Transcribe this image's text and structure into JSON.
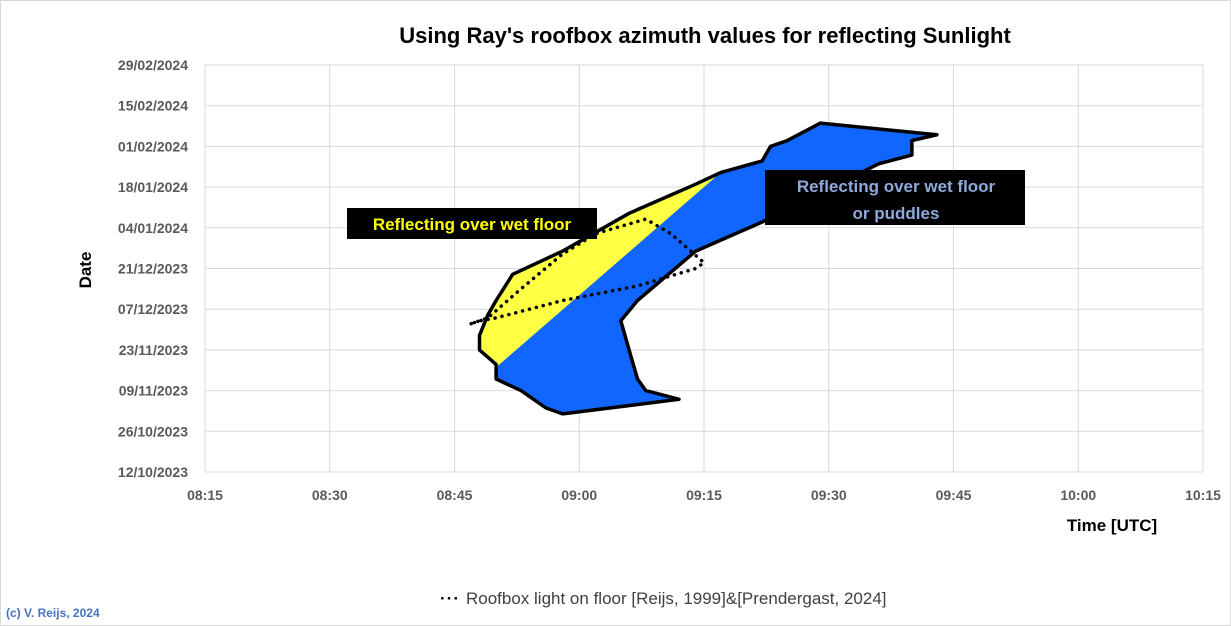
{
  "chart_data": {
    "type": "area",
    "title": "Using Ray's roofbox azimuth values for reflecting Sunlight",
    "xlabel": "Time [UTC]",
    "ylabel": "Date",
    "xlim": [
      "08:15",
      "10:15"
    ],
    "ylim": [
      "2023-10-12",
      "2024-02-29"
    ],
    "x_ticks": [
      "08:15",
      "08:30",
      "08:45",
      "09:00",
      "09:15",
      "09:30",
      "09:45",
      "10:00",
      "10:15"
    ],
    "y_ticks": [
      "12/10/2023",
      "26/10/2023",
      "09/11/2023",
      "23/11/2023",
      "07/12/2023",
      "21/12/2023",
      "04/01/2024",
      "18/01/2024",
      "01/02/2024",
      "15/02/2024",
      "29/02/2024"
    ],
    "grid": true,
    "regions": [
      {
        "label": "Reflecting over wet floor or puddles",
        "label_lines": [
          "Reflecting over wet floor",
          "or puddles"
        ],
        "color": "#1166FF",
        "label_color": "#8EA9DB",
        "points": [
          [
            "09:29",
            "2024-02-09"
          ],
          [
            "09:43",
            "2024-02-05"
          ],
          [
            "09:40",
            "2024-02-03"
          ],
          [
            "09:40",
            "2024-01-29"
          ],
          [
            "09:36",
            "2024-01-26"
          ],
          [
            "09:22",
            "2024-01-06"
          ],
          [
            "09:14",
            "2023-12-27"
          ],
          [
            "09:07",
            "2023-12-10"
          ],
          [
            "09:05",
            "2023-12-03"
          ],
          [
            "09:06",
            "2023-11-23"
          ],
          [
            "09:07",
            "2023-11-13"
          ],
          [
            "09:08",
            "2023-11-09"
          ],
          [
            "09:12",
            "2023-11-06"
          ],
          [
            "08:58",
            "2023-11-01"
          ],
          [
            "08:56",
            "2023-11-03"
          ],
          [
            "08:53",
            "2023-11-09"
          ],
          [
            "08:50",
            "2023-11-13"
          ],
          [
            "08:50",
            "2023-11-18"
          ],
          [
            "08:48",
            "2023-11-23"
          ],
          [
            "08:48",
            "2023-11-28"
          ],
          [
            "08:49",
            "2023-12-05"
          ],
          [
            "08:50",
            "2023-12-10"
          ],
          [
            "08:52",
            "2023-12-19"
          ],
          [
            "08:58",
            "2023-12-27"
          ],
          [
            "09:06",
            "2024-01-09"
          ],
          [
            "09:14",
            "2024-01-19"
          ],
          [
            "09:17",
            "2024-01-23"
          ],
          [
            "09:22",
            "2024-01-27"
          ],
          [
            "09:23",
            "2024-02-01"
          ],
          [
            "09:25",
            "2024-02-03"
          ]
        ]
      },
      {
        "label": "Reflecting over wet floor",
        "color": "#FFFF44",
        "label_color": "#FFFF00",
        "points": [
          [
            "09:17",
            "2024-01-23"
          ],
          [
            "09:14",
            "2024-01-19"
          ],
          [
            "09:06",
            "2024-01-09"
          ],
          [
            "08:58",
            "2023-12-27"
          ],
          [
            "08:52",
            "2023-12-19"
          ],
          [
            "08:50",
            "2023-12-10"
          ],
          [
            "08:49",
            "2023-12-05"
          ],
          [
            "08:48",
            "2023-11-28"
          ],
          [
            "08:48",
            "2023-11-23"
          ],
          [
            "08:50",
            "2023-11-18"
          ],
          [
            "08:50",
            "2023-11-17"
          ]
        ]
      }
    ],
    "series": [
      {
        "name": "Roofbox light on floor [Reijs, 1999]&[Prendergast, 2024]",
        "type": "dotted-line",
        "color": "#000000",
        "points": [
          [
            "08:47",
            "2023-12-02"
          ],
          [
            "08:49",
            "2023-12-04"
          ],
          [
            "08:53",
            "2023-12-14"
          ],
          [
            "08:58",
            "2023-12-26"
          ],
          [
            "09:02",
            "2024-01-02"
          ],
          [
            "09:08",
            "2024-01-07"
          ],
          [
            "09:11",
            "2024-01-02"
          ],
          [
            "09:15",
            "2023-12-23"
          ],
          [
            "09:14",
            "2023-12-21"
          ],
          [
            "09:07",
            "2023-12-15"
          ],
          [
            "08:58",
            "2023-12-10"
          ],
          [
            "08:50",
            "2023-12-04"
          ],
          [
            "08:48",
            "2023-12-03"
          ],
          [
            "08:47",
            "2023-12-02"
          ]
        ]
      }
    ],
    "legend_position": "bottom"
  },
  "copyright": "(c) V. Reijs, 2024"
}
